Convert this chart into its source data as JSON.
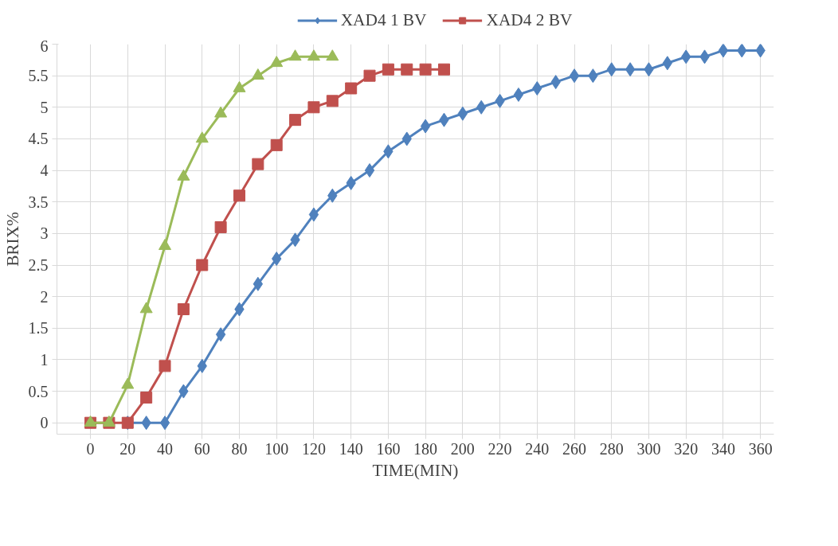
{
  "chart_data": {
    "type": "line",
    "xlabel": "TIME(MIN)",
    "ylabel": "BRIX%",
    "series": [
      {
        "name": "XAD4 1 BV",
        "color": "#4f81bd",
        "marker": "diamond",
        "x": [
          20,
          30,
          40,
          50,
          60,
          70,
          80,
          90,
          100,
          110,
          120,
          130,
          140,
          150,
          160,
          170,
          180,
          190,
          200,
          210,
          220,
          230,
          240,
          250,
          260,
          270,
          280,
          290,
          300,
          310,
          320,
          330,
          340,
          350,
          360
        ],
        "values": [
          0,
          0,
          0,
          0.5,
          0.9,
          1.4,
          1.8,
          2.2,
          2.6,
          2.9,
          3.3,
          3.6,
          3.8,
          4.0,
          4.3,
          4.5,
          4.7,
          4.8,
          4.9,
          5.0,
          5.1,
          5.2,
          5.3,
          5.4,
          5.5,
          5.5,
          5.6,
          5.6,
          5.6,
          5.7,
          5.8,
          5.8,
          5.9,
          5.9,
          5.9
        ]
      },
      {
        "name": "XAD4 2 BV",
        "color": "#c0504d",
        "marker": "square",
        "x": [
          0,
          10,
          20,
          30,
          40,
          50,
          60,
          70,
          80,
          90,
          100,
          110,
          120,
          130,
          140,
          150,
          160,
          170,
          180,
          190
        ],
        "values": [
          0,
          0,
          0,
          0.4,
          0.9,
          1.8,
          2.5,
          3.1,
          3.6,
          4.1,
          4.4,
          4.8,
          5.0,
          5.1,
          5.3,
          5.5,
          5.6,
          5.6,
          5.6,
          5.6
        ]
      },
      {
        "color": "#9bbb59",
        "marker": "triangle",
        "x": [
          0,
          10,
          20,
          30,
          40,
          50,
          60,
          70,
          80,
          90,
          100,
          110,
          120,
          130
        ],
        "values": [
          0,
          0,
          0.6,
          1.8,
          2.8,
          3.9,
          4.5,
          4.9,
          5.3,
          5.5,
          5.7,
          5.8,
          5.8,
          5.8
        ]
      }
    ],
    "xlim": [
      0,
      360
    ],
    "xticks": [
      0,
      20,
      40,
      60,
      80,
      100,
      120,
      140,
      160,
      180,
      200,
      220,
      240,
      260,
      280,
      300,
      320,
      340,
      360
    ],
    "ylim": [
      0,
      6
    ],
    "yticks": [
      0,
      0.5,
      1,
      1.5,
      2,
      2.5,
      3,
      3.5,
      4,
      4.5,
      5,
      5.5,
      6
    ],
    "grid": true,
    "legend": "top"
  }
}
